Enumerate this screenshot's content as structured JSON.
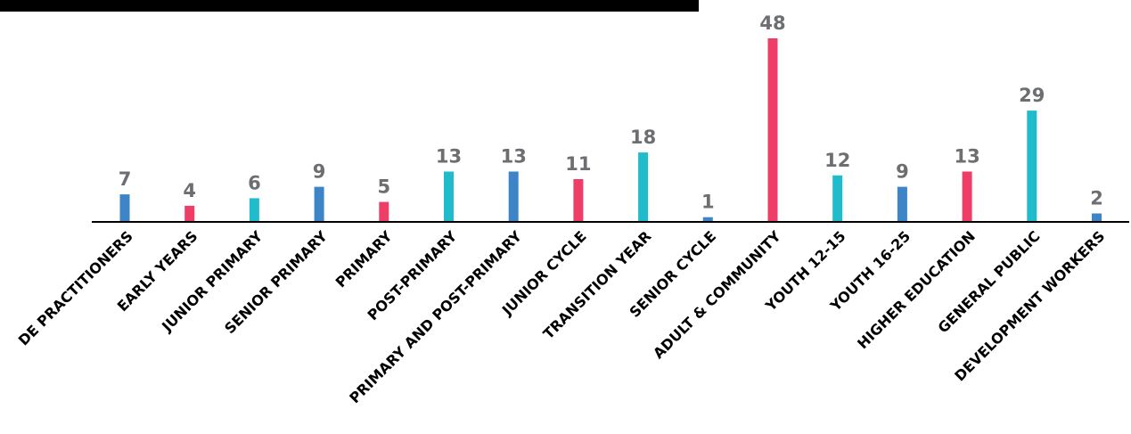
{
  "chart_data": {
    "type": "bar",
    "title": "",
    "xlabel": "",
    "ylabel": "",
    "ylim": [
      0,
      48
    ],
    "grid": false,
    "categories": [
      "DE PRACTITIONERS",
      "EARLY YEARS",
      "JUNIOR PRIMARY",
      "SENIOR PRIMARY",
      "PRIMARY",
      "POST-PRIMARY",
      "PRIMARY AND POST-PRIMARY",
      "JUNIOR CYCLE",
      "TRANSITION YEAR",
      "SENIOR CYCLE",
      "ADULT & COMMUNITY",
      "YOUTH 12-15",
      "YOUTH 16-25",
      "HIGHER EDUCATION",
      "GENERAL PUBLIC",
      "DEVELOPMENT WORKERS"
    ],
    "values": [
      7,
      4,
      6,
      9,
      5,
      13,
      13,
      11,
      18,
      1,
      48,
      12,
      9,
      13,
      29,
      2
    ],
    "colors": [
      "#3d85c6",
      "#ee3d66",
      "#21bccb",
      "#3d85c6",
      "#ee3d66",
      "#21bccb",
      "#3d85c6",
      "#ee3d66",
      "#21bccb",
      "#3d85c6",
      "#ee3d66",
      "#21bccb",
      "#3d85c6",
      "#ee3d66",
      "#21bccb",
      "#3d85c6"
    ]
  }
}
